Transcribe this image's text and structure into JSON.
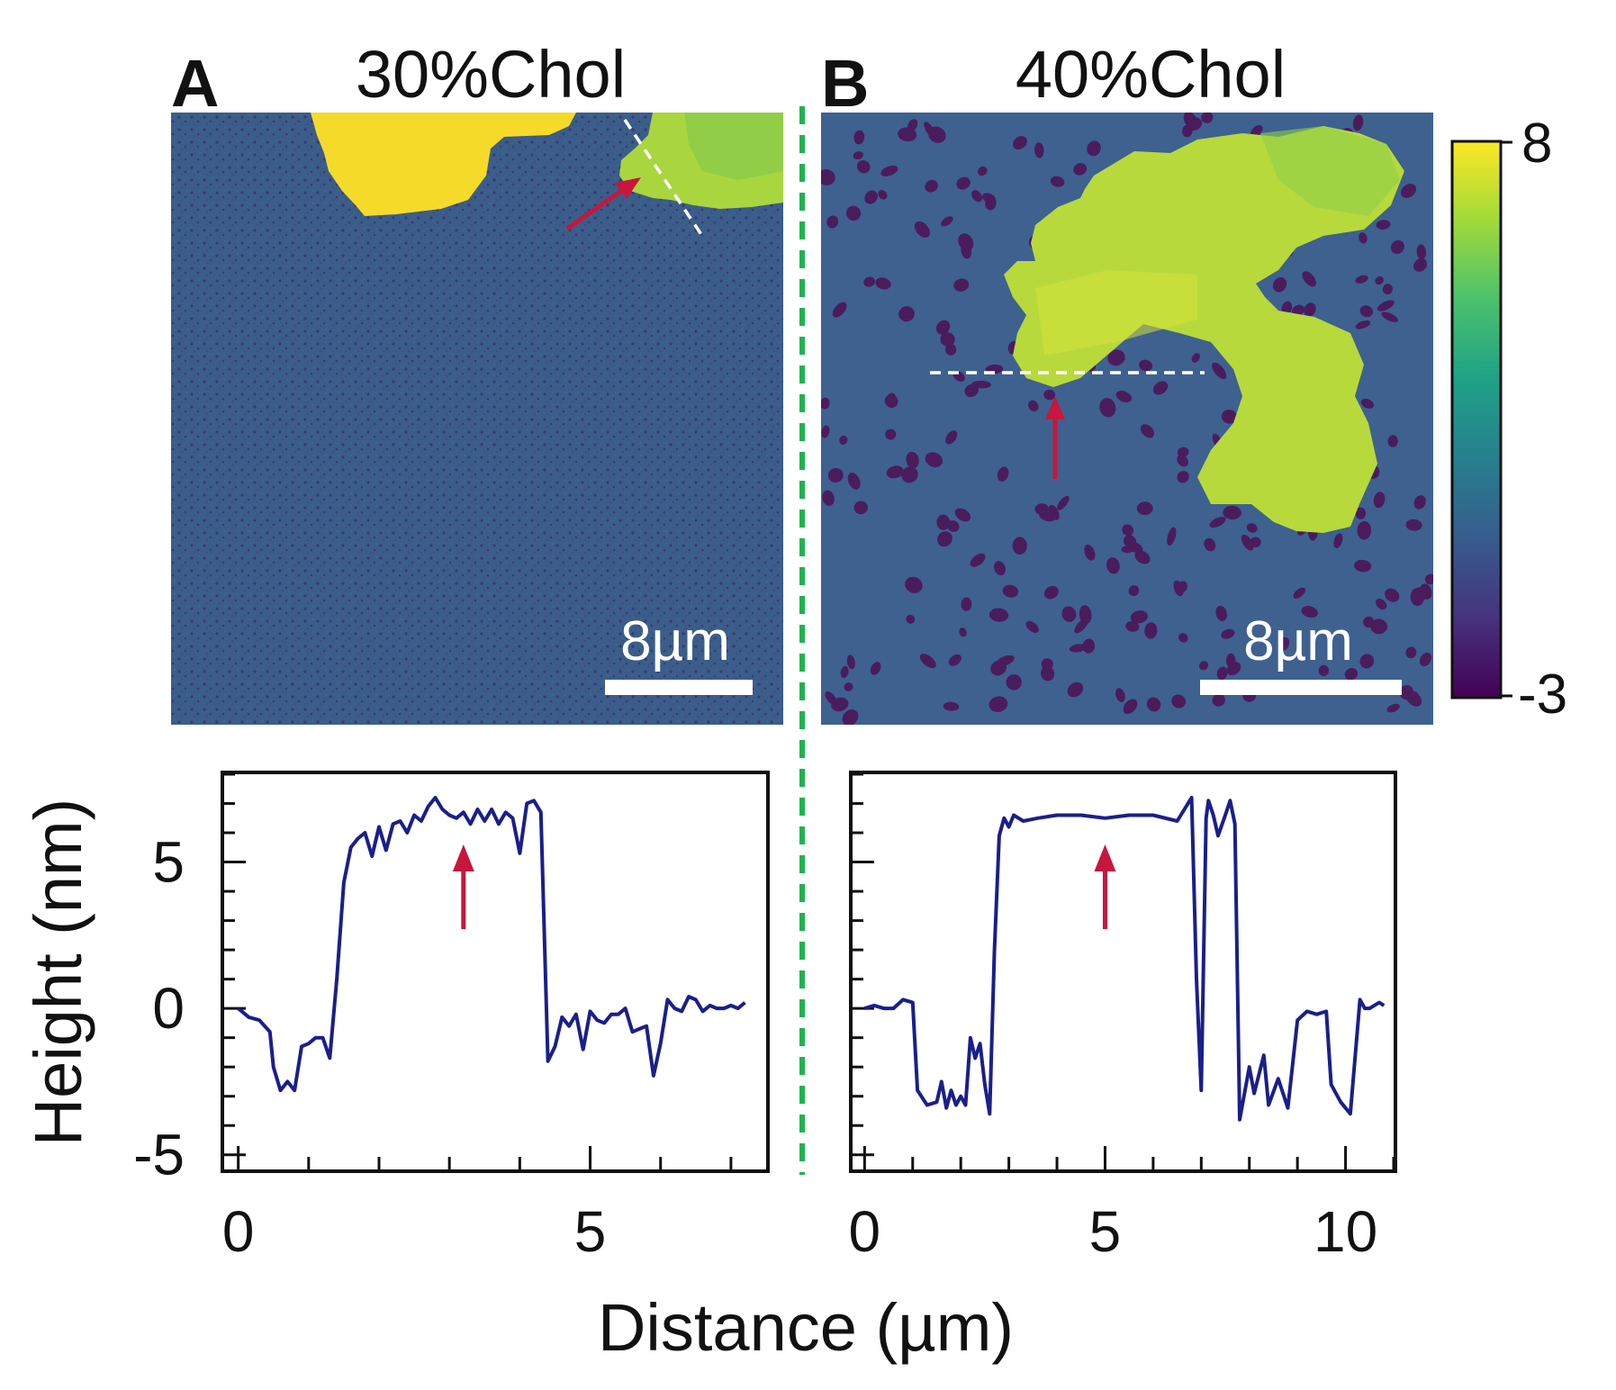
{
  "colors": {
    "background": "#ffffff",
    "membrane": "#3d5f8c",
    "pits": "#4a1c5e",
    "domain_green": "#b9da3c",
    "domain_yellow": "#f6dc28",
    "domain_teal": "#7ccd55",
    "profile_line": "#1a1f8a",
    "arrow": "#c8163c",
    "divider": "#1fb34f",
    "scale_bar": "#ffffff"
  },
  "panels": {
    "a": {
      "letter": "A",
      "title": "30%Chol",
      "scale_bar_label": "8µm"
    },
    "b": {
      "letter": "B",
      "title": "40%Chol",
      "scale_bar_label": "8µm"
    }
  },
  "colorbar": {
    "max_label": "8",
    "min_label": "-3",
    "range": [
      -3,
      8
    ],
    "stops": [
      "#440154",
      "#46327e",
      "#365c8d",
      "#277f8e",
      "#1fa187",
      "#4ac16d",
      "#a0da39",
      "#fde725"
    ]
  },
  "axes": {
    "ylabel": "Height (nm)",
    "xlabel": "Distance (µm)"
  },
  "chart_data": [
    {
      "type": "line",
      "panel": "A",
      "title": "30%Chol",
      "xlabel": "Distance (µm)",
      "ylabel": "Height (nm)",
      "xlim": [
        -0.2,
        7.5
      ],
      "ylim": [
        -5.5,
        8
      ],
      "xticks": [
        0,
        5
      ],
      "xtick_labels": [
        "0",
        "5"
      ],
      "yticks": [
        -5,
        0,
        5
      ],
      "ytick_labels": [
        "-5",
        "0",
        "5"
      ],
      "arrow_x": 3.2,
      "x": [
        0.0,
        0.15,
        0.3,
        0.45,
        0.5,
        0.6,
        0.7,
        0.8,
        0.9,
        1.0,
        1.1,
        1.2,
        1.3,
        1.4,
        1.5,
        1.6,
        1.7,
        1.8,
        1.9,
        2.0,
        2.1,
        2.2,
        2.3,
        2.4,
        2.5,
        2.6,
        2.7,
        2.8,
        2.9,
        3.0,
        3.1,
        3.2,
        3.3,
        3.4,
        3.5,
        3.6,
        3.7,
        3.8,
        3.9,
        4.0,
        4.1,
        4.2,
        4.3,
        4.4,
        4.5,
        4.6,
        4.7,
        4.8,
        4.9,
        5.0,
        5.1,
        5.2,
        5.3,
        5.4,
        5.5,
        5.6,
        5.7,
        5.8,
        5.9,
        6.0,
        6.1,
        6.2,
        6.3,
        6.4,
        6.5,
        6.6,
        6.7,
        6.8,
        6.9,
        7.0,
        7.1,
        7.2
      ],
      "values": [
        0.0,
        -0.3,
        -0.4,
        -0.8,
        -2.0,
        -2.8,
        -2.5,
        -2.8,
        -1.3,
        -1.2,
        -1.0,
        -1.0,
        -1.7,
        1.0,
        4.3,
        5.5,
        5.8,
        6.0,
        5.2,
        6.2,
        5.4,
        6.3,
        6.4,
        6.0,
        6.6,
        6.4,
        6.9,
        7.2,
        6.8,
        6.6,
        6.5,
        6.7,
        6.3,
        6.8,
        6.4,
        6.8,
        6.3,
        6.7,
        6.5,
        5.3,
        7.0,
        7.1,
        6.7,
        -1.8,
        -1.3,
        -0.3,
        -0.6,
        -0.2,
        -1.4,
        -0.1,
        -0.4,
        -0.5,
        -0.2,
        -0.2,
        0.0,
        -0.8,
        -0.7,
        -0.6,
        -2.3,
        -1.2,
        0.3,
        0.0,
        -0.1,
        0.4,
        0.3,
        -0.1,
        0.1,
        0.0,
        0.0,
        0.1,
        0.0,
        0.2
      ]
    },
    {
      "type": "line",
      "panel": "B",
      "title": "40%Chol",
      "xlabel": "Distance (µm)",
      "ylabel": "Height (nm)",
      "xlim": [
        -0.25,
        11.0
      ],
      "ylim": [
        -5.5,
        8
      ],
      "xticks": [
        0,
        5,
        10
      ],
      "xtick_labels": [
        "0",
        "5",
        "10"
      ],
      "yticks": [
        -5,
        0,
        5
      ],
      "ytick_labels": [
        "-5",
        "0",
        "5"
      ],
      "arrow_x": 5.0,
      "x": [
        0.0,
        0.2,
        0.4,
        0.6,
        0.8,
        1.0,
        1.1,
        1.3,
        1.5,
        1.6,
        1.7,
        1.8,
        1.9,
        2.0,
        2.1,
        2.2,
        2.3,
        2.4,
        2.5,
        2.6,
        2.7,
        2.8,
        2.9,
        3.0,
        3.1,
        3.3,
        3.6,
        4.0,
        4.5,
        5.0,
        5.5,
        6.0,
        6.5,
        6.8,
        6.9,
        7.0,
        7.1,
        7.15,
        7.25,
        7.35,
        7.5,
        7.6,
        7.7,
        7.8,
        8.0,
        8.1,
        8.3,
        8.4,
        8.6,
        8.8,
        9.0,
        9.2,
        9.4,
        9.6,
        9.7,
        9.9,
        10.1,
        10.3,
        10.4,
        10.5,
        10.7,
        10.8
      ],
      "values": [
        0.0,
        0.1,
        0.0,
        0.0,
        0.3,
        0.2,
        -2.8,
        -3.3,
        -3.2,
        -2.5,
        -3.4,
        -2.8,
        -3.3,
        -3.0,
        -3.3,
        -1.0,
        -1.7,
        -1.2,
        -2.6,
        -3.6,
        2.0,
        5.9,
        6.5,
        6.2,
        6.6,
        6.4,
        6.5,
        6.6,
        6.6,
        6.5,
        6.6,
        6.6,
        6.4,
        7.2,
        1.0,
        -2.8,
        6.5,
        7.1,
        6.6,
        5.9,
        6.6,
        7.1,
        6.3,
        -3.8,
        -2.0,
        -2.9,
        -1.6,
        -3.3,
        -2.4,
        -3.4,
        -0.4,
        -0.1,
        -0.2,
        -0.1,
        -2.6,
        -3.2,
        -3.6,
        0.3,
        0.0,
        0.0,
        0.2,
        0.1
      ]
    }
  ]
}
